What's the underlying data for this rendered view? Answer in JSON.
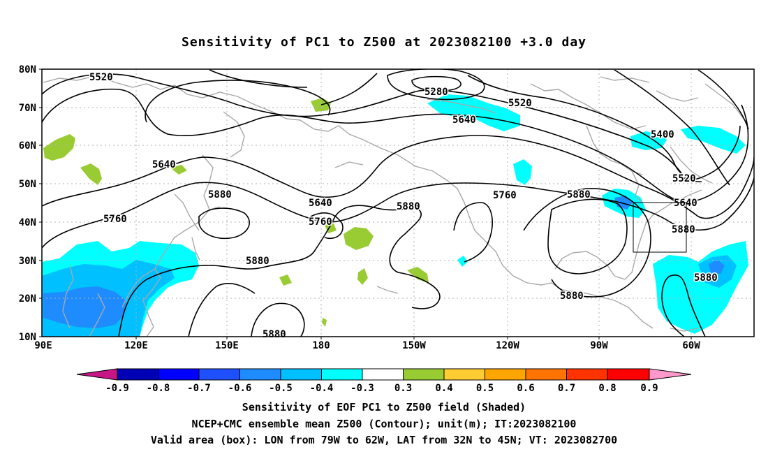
{
  "title": "Sensitivity of PC1 to Z500 at 2023082100 +3.0 day",
  "lat_labels": [
    "80N",
    "70N",
    "60N",
    "50N",
    "40N",
    "30N",
    "20N",
    "10N"
  ],
  "lon_labels": [
    "90E",
    "120E",
    "150E",
    "180",
    "150W",
    "120W",
    "90W",
    "60W"
  ],
  "contour_labels": [
    "5520",
    "5280",
    "5520",
    "5640",
    "5400",
    "5640",
    "5520",
    "5880",
    "5640",
    "5880",
    "5760",
    "5760",
    "5880",
    "5640",
    "5760",
    "5880",
    "5880",
    "5880",
    "5880",
    "5880"
  ],
  "colorbar": {
    "labels": [
      "-0.9",
      "-0.8",
      "-0.7",
      "-0.6",
      "-0.5",
      "-0.4",
      "-0.3",
      "0.3",
      "0.4",
      "0.5",
      "0.6",
      "0.7",
      "0.8",
      "0.9"
    ],
    "colors": [
      "#c71585",
      "#0000b4",
      "#0000ff",
      "#1e50ff",
      "#1e8cff",
      "#00c0ff",
      "#00ffff",
      "#ffffff",
      "#99cc33",
      "#ffcc33",
      "#ffa500",
      "#ff7300",
      "#ff3300",
      "#ff0000",
      "#ff99cc"
    ]
  },
  "valid_box": {
    "lon_min": "79W",
    "lon_max": "62W",
    "lat_min": "32N",
    "lat_max": "45N"
  },
  "captions": [
    "Sensitivity of EOF PC1 to Z500 field (Shaded)",
    "NCEP+CMC ensemble mean Z500 (Contour); unit(m); IT:2023082100",
    "Valid area (box): LON from 79W to 62W, LAT from 32N to 45N; VT: 2023082700"
  ],
  "colors": {
    "contour": "#000000",
    "coast": "#a8a8a8",
    "grid": "#b0b0b0",
    "positive": "#99cc33",
    "negative_light": "#00ffff",
    "negative_mid": "#00c0ff",
    "negative_dark": "#1e8cff"
  }
}
